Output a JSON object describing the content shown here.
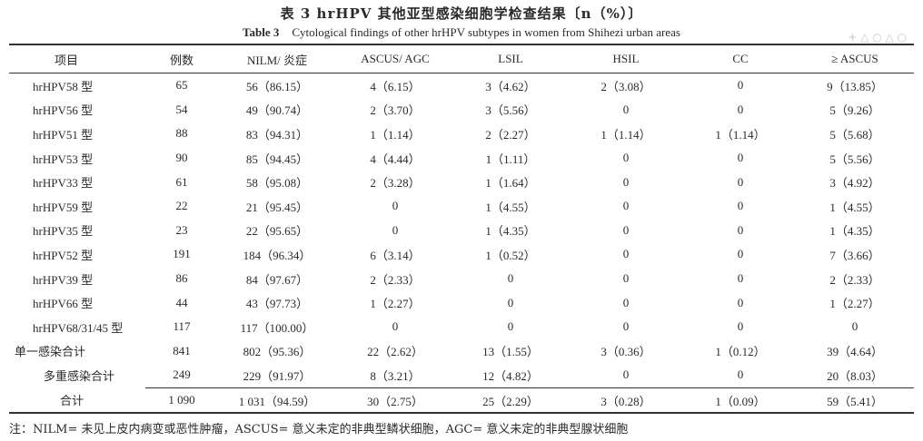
{
  "title_cn": "表 3  hrHPV 其他亚型感染细胞学检查结果〔n（%）〕",
  "title_en_label": "Table 3",
  "title_en_text": "Cytological findings of other hrHPV subtypes in women from Shihezi urban areas",
  "watermark": "+ △ ○ △ ○",
  "columns": [
    "项目",
    "例数",
    "NILM/ 炎症",
    "ASCUS/ AGC",
    "LSIL",
    "HSIL",
    "CC",
    "≥ ASCUS"
  ],
  "rows": [
    [
      "hrHPV58 型",
      "65",
      "56（86.15）",
      "4（6.15）",
      "3（4.62）",
      "2（3.08）",
      "0",
      "9（13.85）"
    ],
    [
      "hrHPV56 型",
      "54",
      "49（90.74）",
      "2（3.70）",
      "3（5.56）",
      "0",
      "0",
      "5（9.26）"
    ],
    [
      "hrHPV51 型",
      "88",
      "83（94.31）",
      "1（1.14）",
      "2（2.27）",
      "1（1.14）",
      "1（1.14）",
      "5（5.68）"
    ],
    [
      "hrHPV53 型",
      "90",
      "85（94.45）",
      "4（4.44）",
      "1（1.11）",
      "0",
      "0",
      "5（5.56）"
    ],
    [
      "hrHPV33 型",
      "61",
      "58（95.08）",
      "2（3.28）",
      "1（1.64）",
      "0",
      "0",
      "3（4.92）"
    ],
    [
      "hrHPV59 型",
      "22",
      "21（95.45）",
      "0",
      "1（4.55）",
      "0",
      "0",
      "1（4.55）"
    ],
    [
      "hrHPV35 型",
      "23",
      "22（95.65）",
      "0",
      "1（4.35）",
      "0",
      "0",
      "1（4.35）"
    ],
    [
      "hrHPV52 型",
      "191",
      "184（96.34）",
      "6（3.14）",
      "1（0.52）",
      "0",
      "0",
      "7（3.66）"
    ],
    [
      "hrHPV39 型",
      "86",
      "84（97.67）",
      "2（2.33）",
      "0",
      "0",
      "0",
      "2（2.33）"
    ],
    [
      "hrHPV66 型",
      "44",
      "43（97.73）",
      "1（2.27）",
      "0",
      "0",
      "0",
      "1（2.27）"
    ],
    [
      "hrHPV68/31/45 型",
      "117",
      "117（100.00）",
      "0",
      "0",
      "0",
      "0",
      "0"
    ],
    [
      "单一感染合计",
      "841",
      "802（95.36）",
      "22（2.62）",
      "13（1.55）",
      "3（0.36）",
      "1（0.12）",
      "39（4.64）"
    ],
    [
      "多重感染合计",
      "249",
      "229（91.97）",
      "8（3.21）",
      "12（4.82）",
      "0",
      "0",
      "20（8.03）"
    ],
    [
      "合计",
      "1 090",
      "1 031（94.59）",
      "30（2.75）",
      "25（2.29）",
      "3（0.28）",
      "1（0.09）",
      "59（5.41）"
    ]
  ],
  "note": "注：NILM= 未见上皮内病变或恶性肿瘤，ASCUS= 意义未定的非典型鳞状细胞，AGC= 意义未定的非典型腺状细胞"
}
